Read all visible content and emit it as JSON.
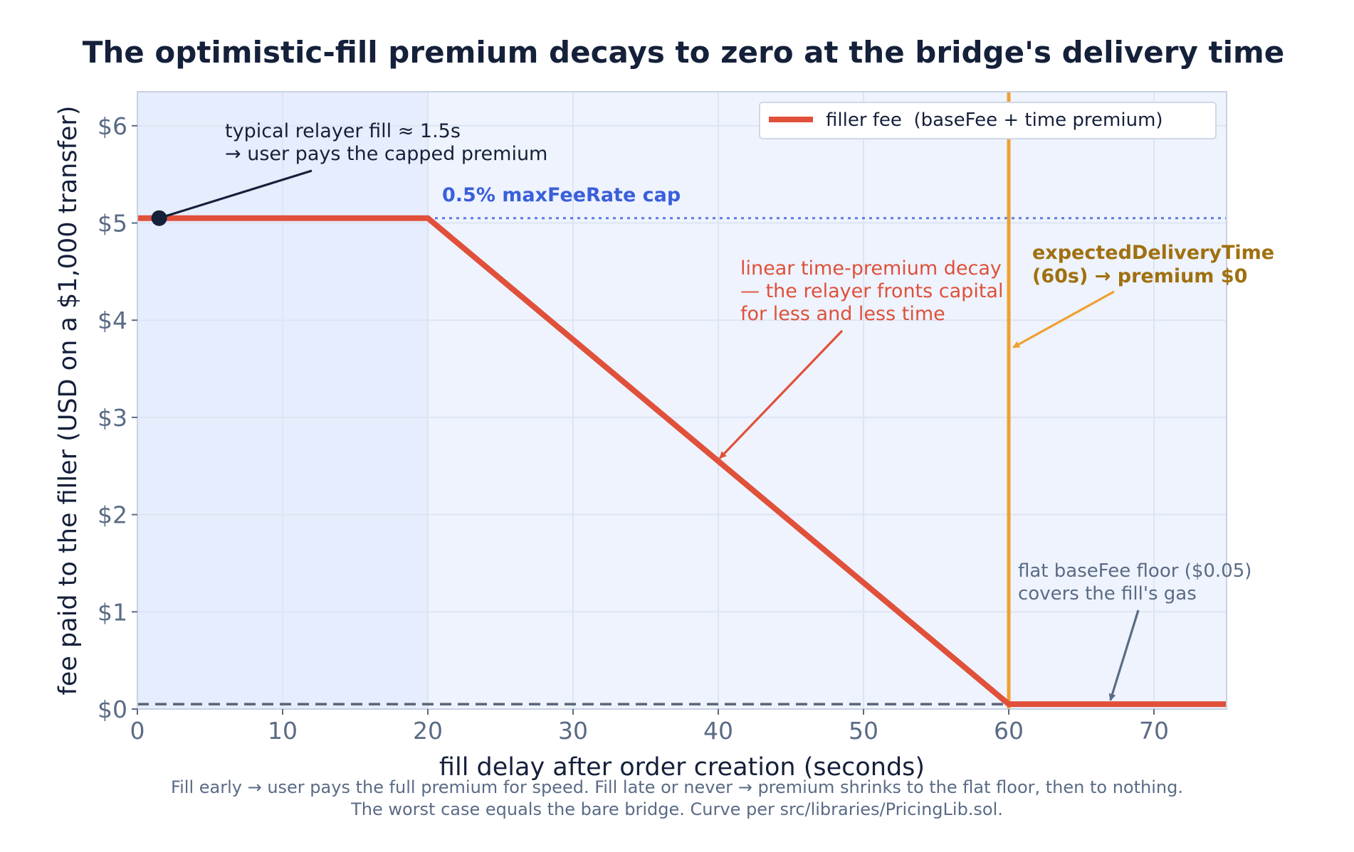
{
  "chart_data": {
    "type": "line",
    "title": "The optimistic-fill premium decays to zero at the bridge's delivery time",
    "xlabel": "fill delay after order creation  (seconds)",
    "ylabel": "fee paid to the filler  (USD on a $1,000 transfer)",
    "xlim": [
      0,
      75
    ],
    "ylim": [
      0,
      6.35
    ],
    "x_ticks": [
      0,
      10,
      20,
      30,
      40,
      50,
      60,
      70
    ],
    "x_tick_labels": [
      "0",
      "10",
      "20",
      "30",
      "40",
      "50",
      "60",
      "70"
    ],
    "y_ticks": [
      0,
      1,
      2,
      3,
      4,
      5,
      6
    ],
    "y_tick_labels": [
      "$0",
      "$1",
      "$2",
      "$3",
      "$4",
      "$5",
      "$6"
    ],
    "grid": true,
    "legend_position": "top-right",
    "series": [
      {
        "name": "filler fee  (baseFee + time premium)",
        "color": "#e0503a",
        "x": [
          0,
          20,
          60,
          60,
          75
        ],
        "y": [
          5.05,
          5.05,
          0.05,
          0.05,
          0.05
        ]
      }
    ],
    "reference_lines": {
      "max_fee_cap": {
        "y": 5.05,
        "label": "0.5% maxFeeRate cap",
        "color": "#3a5fd9"
      },
      "base_fee_floor": {
        "y": 0.05,
        "color": "#5a6478"
      },
      "delivery_time": {
        "x": 60,
        "color": "#f0a030"
      }
    },
    "marker_point": {
      "x": 1.5,
      "y": 5.05,
      "color": "#15203a"
    },
    "annotations": [
      {
        "id": "relayer",
        "lines": [
          "typical relayer fill ≈ 1.5s",
          "→ user pays the capped premium"
        ],
        "color": "#15203a",
        "arrow_to": [
          1.5,
          5.05
        ]
      },
      {
        "id": "decay",
        "lines": [
          "linear time-premium decay",
          "— the relayer fronts capital",
          "for less and less time"
        ],
        "color": "#e0503a",
        "arrow_to": [
          40.1,
          2.58
        ]
      },
      {
        "id": "delivery",
        "lines": [
          "expectedDeliveryTime",
          "(60s) → premium $0"
        ],
        "color": "#a07010",
        "arrow_color": "#f0a030",
        "arrow_to": [
          60.3,
          3.72
        ]
      },
      {
        "id": "floor",
        "lines": [
          "flat baseFee floor ($0.05)",
          "covers the fill's gas"
        ],
        "color": "#5a6b85",
        "arrow_to": [
          67,
          0.09
        ]
      }
    ]
  },
  "caption": {
    "line1": "Fill early → user pays the full premium for speed. Fill late or never → premium shrinks to the flat floor, then to nothing.",
    "line2": "The worst case equals the bare bridge. Curve per src/libraries/PricingLib.sol."
  }
}
